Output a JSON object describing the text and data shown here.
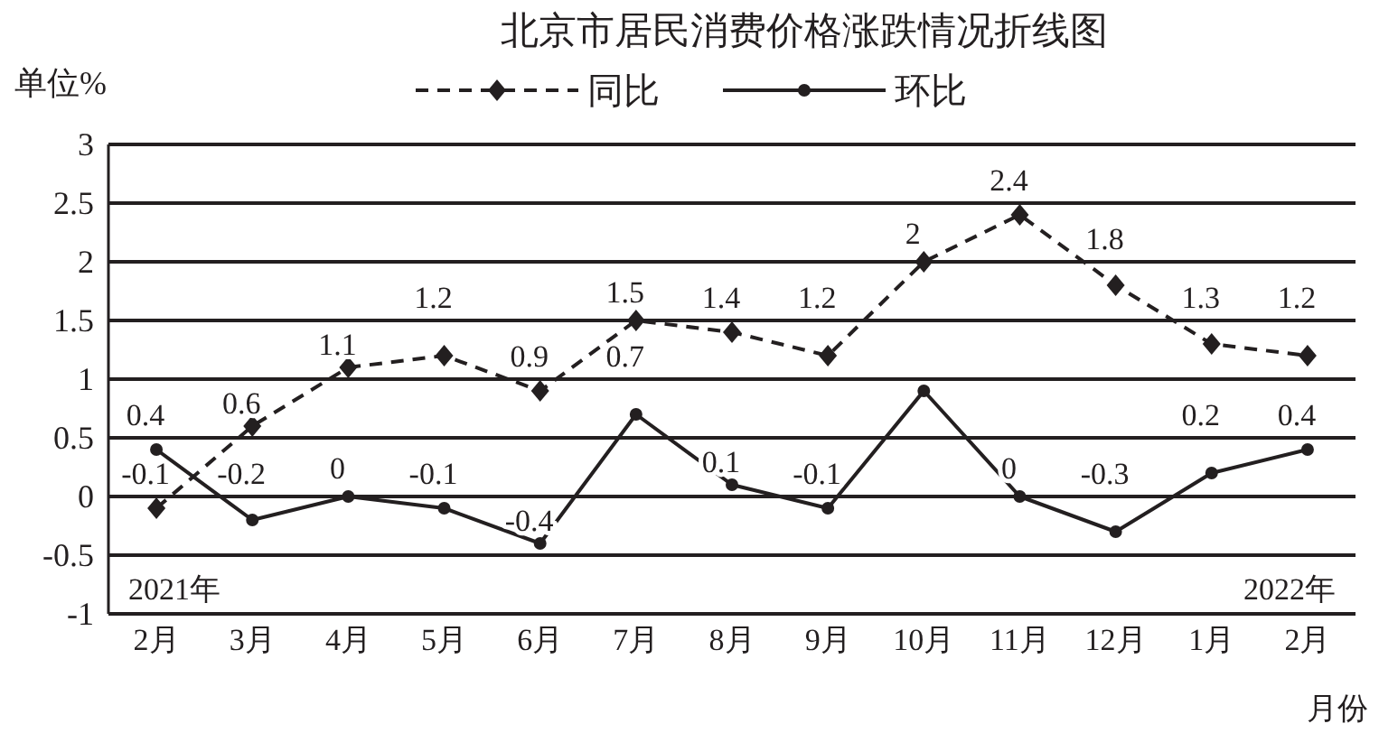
{
  "chart_data": {
    "type": "line",
    "title": "北京市居民消费价格涨跌情况折线图",
    "ylabel": "单位%",
    "xlabel": "月份",
    "categories": [
      "2月",
      "3月",
      "4月",
      "5月",
      "6月",
      "7月",
      "8月",
      "9月",
      "10月",
      "11月",
      "12月",
      "1月",
      "2月"
    ],
    "series": [
      {
        "name": "同比",
        "color": "#231f20",
        "line_style": "dashed",
        "marker": "diamond",
        "values": [
          -0.1,
          0.6,
          1.1,
          1.2,
          0.9,
          1.5,
          1.4,
          1.2,
          2,
          2.4,
          1.8,
          1.3,
          1.2
        ],
        "value_labels": [
          "-0.1",
          "0.6",
          "1.1",
          "1.2",
          "0.9",
          "1.5",
          "1.4",
          "1.2",
          "2",
          "2.4",
          "1.8",
          "1.3",
          "1.2"
        ]
      },
      {
        "name": "环比",
        "color": "#231f20",
        "line_style": "solid",
        "marker": "circle",
        "values": [
          0.4,
          -0.2,
          0,
          -0.1,
          -0.4,
          0.7,
          0.1,
          -0.1,
          0.9,
          0,
          -0.3,
          0.2,
          0.4
        ],
        "value_labels": [
          "0.4",
          "-0.2",
          "0",
          "-0.1",
          "-0.4",
          "0.7",
          "0.1",
          "-0.1",
          null,
          "0",
          "-0.3",
          "0.2",
          "0.4"
        ]
      }
    ],
    "ylim": [
      -1,
      3
    ],
    "yticks": [
      -1,
      -0.5,
      0,
      0.5,
      1,
      1.5,
      2,
      2.5,
      3
    ],
    "grid": "y",
    "legend": "top",
    "annotations": [
      "2021年",
      "2022年"
    ]
  }
}
